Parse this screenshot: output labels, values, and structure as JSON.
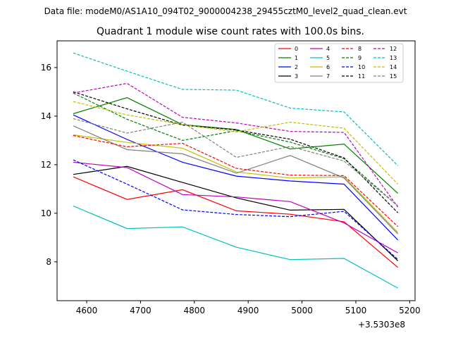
{
  "suptitle": "Data file: modeM0/AS1A10_094T02_9000004238_29455cztM0_level2_quad_clean.evt",
  "chart_data": {
    "type": "line",
    "title": "Quadrant 1 module wise count rates with 100.0s bins.",
    "xlabel": "",
    "ylabel": "",
    "x_offset_label": "+3.5303e8",
    "x": [
      4575,
      4675,
      4778,
      4878,
      4978,
      5078,
      5178
    ],
    "xlim": [
      4545,
      5210
    ],
    "ylim": [
      6.4,
      17.1
    ],
    "xticks": [
      4600,
      4700,
      4800,
      4900,
      5000,
      5100,
      5200
    ],
    "yticks": [
      8,
      10,
      12,
      14,
      16
    ],
    "legend_position": "top-right",
    "series": [
      {
        "name": "0",
        "color": "#ff0000",
        "dash": "solid",
        "values": [
          11.5,
          10.57,
          10.97,
          10.1,
          9.96,
          9.65,
          7.77
        ]
      },
      {
        "name": "1",
        "color": "#008000",
        "dash": "solid",
        "values": [
          14.1,
          14.76,
          13.65,
          13.45,
          12.65,
          12.85,
          10.82
        ]
      },
      {
        "name": "2",
        "color": "#0000ff",
        "dash": "solid",
        "values": [
          14.05,
          13.04,
          12.1,
          11.53,
          11.33,
          11.2,
          8.9
        ]
      },
      {
        "name": "3",
        "color": "#000000",
        "dash": "solid",
        "values": [
          11.6,
          11.93,
          11.27,
          10.63,
          10.13,
          10.16,
          8.04
        ]
      },
      {
        "name": "4",
        "color": "#c000c0",
        "dash": "solid",
        "values": [
          12.1,
          11.88,
          10.77,
          10.67,
          10.48,
          9.6,
          8.37
        ]
      },
      {
        "name": "5",
        "color": "#00c0c0",
        "dash": "solid",
        "values": [
          10.3,
          9.37,
          9.44,
          8.6,
          8.09,
          8.14,
          6.92
        ]
      },
      {
        "name": "6",
        "color": "#c0c000",
        "dash": "solid",
        "values": [
          13.23,
          12.92,
          12.68,
          11.7,
          11.45,
          11.5,
          9.21
        ]
      },
      {
        "name": "7",
        "color": "#808080",
        "dash": "solid",
        "values": [
          13.6,
          12.62,
          12.45,
          11.65,
          12.38,
          11.45,
          9.15
        ]
      },
      {
        "name": "8",
        "color": "#ff0000",
        "dash": "dashed",
        "values": [
          13.2,
          12.74,
          12.88,
          11.85,
          11.57,
          11.55,
          9.45
        ]
      },
      {
        "name": "9",
        "color": "#008000",
        "dash": "dashed",
        "values": [
          14.95,
          13.87,
          13.0,
          13.4,
          12.93,
          12.25,
          10.3
        ]
      },
      {
        "name": "10",
        "color": "#0000ff",
        "dash": "dashed",
        "values": [
          12.2,
          11.2,
          10.14,
          9.95,
          9.86,
          10.08,
          8.1
        ]
      },
      {
        "name": "11",
        "color": "#000000",
        "dash": "dashed",
        "values": [
          15.0,
          14.3,
          13.63,
          13.43,
          13.05,
          12.28,
          10.02
        ]
      },
      {
        "name": "12",
        "color": "#c000c0",
        "dash": "dashed",
        "values": [
          14.95,
          15.35,
          13.95,
          13.72,
          13.37,
          13.33,
          10.25
        ]
      },
      {
        "name": "13",
        "color": "#00c0c0",
        "dash": "dashed",
        "values": [
          16.6,
          15.85,
          15.1,
          15.07,
          14.33,
          14.17,
          11.96
        ]
      },
      {
        "name": "14",
        "color": "#c0c000",
        "dash": "dashed",
        "values": [
          14.6,
          14.05,
          13.65,
          13.35,
          13.75,
          13.5,
          11.2
        ]
      },
      {
        "name": "15",
        "color": "#808080",
        "dash": "dashed",
        "values": [
          13.9,
          13.3,
          13.75,
          12.3,
          12.75,
          12.15,
          10.3
        ]
      }
    ]
  }
}
